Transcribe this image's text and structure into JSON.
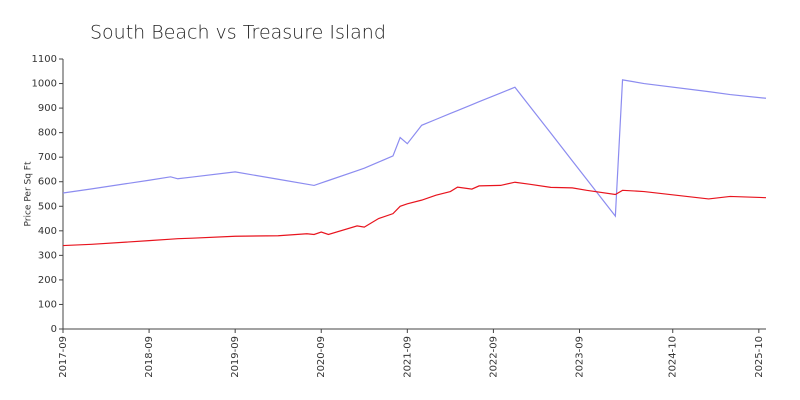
{
  "chart_data": {
    "type": "line",
    "title": "South Beach vs Treasure Island",
    "ylabel": "Price Per Sq Ft",
    "x": [
      "2017-09",
      "2018-01",
      "2018-09",
      "2018-12",
      "2019-01",
      "2019-03",
      "2019-09",
      "2020-03",
      "2020-07",
      "2020-08",
      "2020-09",
      "2020-10",
      "2021-02",
      "2021-03",
      "2021-05",
      "2021-07",
      "2021-08",
      "2021-09",
      "2021-11",
      "2022-01",
      "2022-03",
      "2022-04",
      "2022-06",
      "2022-07",
      "2022-10",
      "2022-12",
      "2023-02",
      "2023-05",
      "2023-08",
      "2023-10",
      "2024-02",
      "2024-03",
      "2024-06",
      "2025-03",
      "2025-06",
      "2025-11"
    ],
    "series": [
      {
        "color": "#8c8cf0",
        "values": [
          554,
          571,
          606,
          620,
          612,
          619,
          640,
          610,
          590,
          585,
          595,
          605,
          645,
          655,
          680,
          705,
          780,
          755,
          830,
          854,
          878,
          890,
          914,
          926,
          961,
          985,
          910,
          798,
          685,
          610,
          460,
          1015,
          1000,
          967,
          955,
          940
        ]
      },
      {
        "color": "#e8141e",
        "values": [
          340,
          345,
          360,
          366,
          368,
          370,
          378,
          380,
          388,
          385,
          395,
          385,
          420,
          415,
          450,
          470,
          500,
          510,
          525,
          545,
          560,
          578,
          570,
          583,
          585,
          598,
          590,
          577,
          575,
          565,
          548,
          565,
          560,
          530,
          540,
          535
        ]
      }
    ],
    "xlim": [
      "2017-09",
      "2025-11"
    ],
    "xticks": [
      "2017-09",
      "2018-09",
      "2019-09",
      "2020-09",
      "2021-09",
      "2022-09",
      "2023-09",
      "2024-10",
      "2025-10"
    ],
    "ylim": [
      0,
      1100
    ],
    "yticks": [
      0,
      100,
      200,
      300,
      400,
      500,
      600,
      700,
      800,
      900,
      1000,
      1100
    ]
  }
}
